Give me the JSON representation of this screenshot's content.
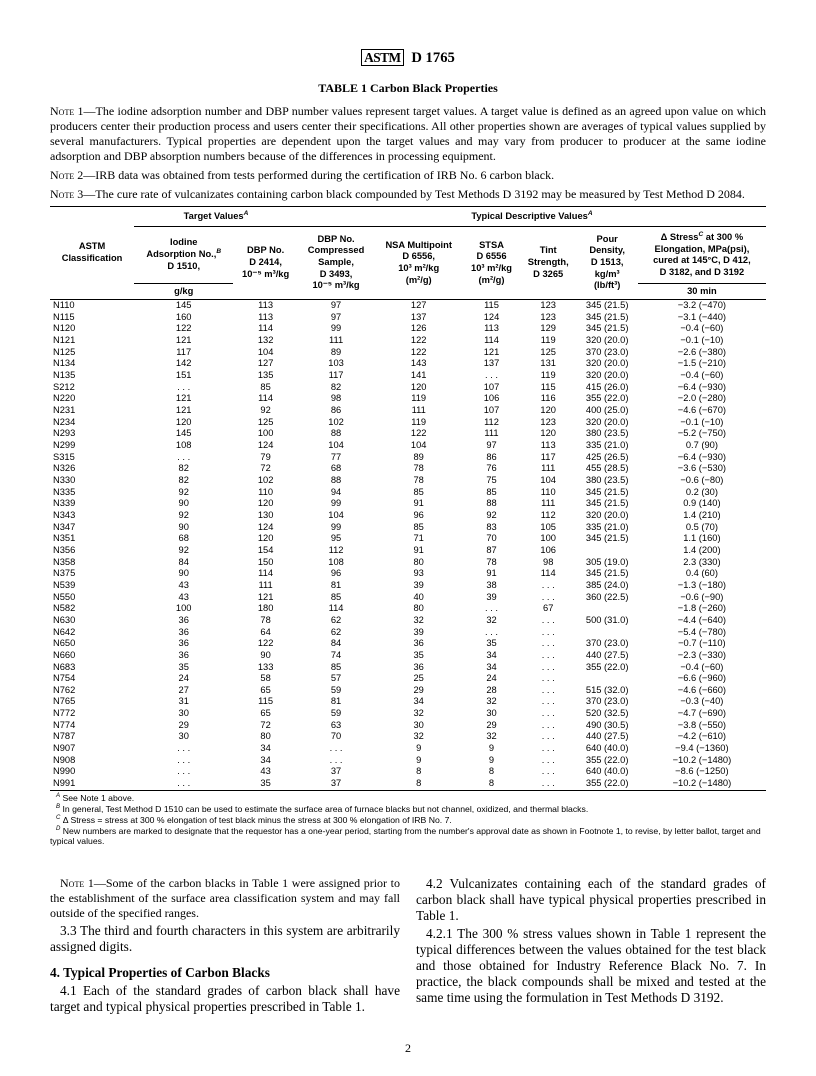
{
  "header": "D 1765",
  "table_title": "TABLE 1  Carbon Black Properties",
  "note1": "NOTE 1—The iodine adsorption number and DBP number values represent target values. A target value is defined as an agreed upon value on which producers center their production process and users center their specifications. All other properties shown are averages of typical values supplied by several manufacturers. Typical properties are dependent upon the target values and may vary from producer to producer at the same iodine adsorption and DBP absorption numbers because of the differences in processing equipment.",
  "note2": "NOTE 2—IRB data was obtained from tests performed during the certification of IRB No. 6 carbon black.",
  "note3": "NOTE 3—The cure rate of vulcanizates containing carbon black compounded by Test Methods D 3192 may be measured by Test Method D 2084.",
  "headers": {
    "astm": "ASTM\nClassification",
    "target": "Target Values",
    "descriptive": "Typical Descriptive Values",
    "iodine": "Iodine\nAdsorption No.,",
    "iodine_sub": "D 1510,\ng/kg",
    "dbp": "DBP No.\nD 2414,\n10⁻⁵ m³/kg",
    "dbp_comp": "DBP No.\nCompressed\nSample,\nD 3493,\n10⁻⁵ m³/kg",
    "nsa": "NSA Multipoint\nD 6556,\n10³ m²/kg\n(m²/g)",
    "stsa": "STSA\nD 6556\n10³ m²/kg\n(m²/g)",
    "tint": "Tint\nStrength,\nD 3265",
    "pour": "Pour\nDensity,\nD 1513,\nkg/m³\n(lb/ft³)",
    "stress": "Δ Stress",
    "stress_sub": " at 300 %\nElongation, MPa(psi),\ncured at 145°C, D 412,\nD 3182, and D 3192",
    "time": "30 min"
  },
  "rows": [
    [
      "N110",
      "145",
      "113",
      "97",
      "127",
      "115",
      "123",
      "345 (21.5)",
      "−3.2 (−470)"
    ],
    [
      "N115",
      "160",
      "113",
      "97",
      "137",
      "124",
      "123",
      "345 (21.5)",
      "−3.1 (−440)"
    ],
    [
      "N120",
      "122",
      "114",
      "99",
      "126",
      "113",
      "129",
      "345 (21.5)",
      "−0.4 (−60)"
    ],
    [
      "N121",
      "121",
      "132",
      "111",
      "122",
      "114",
      "119",
      "320 (20.0)",
      "−0.1 (−10)"
    ],
    [
      "N125",
      "117",
      "104",
      "89",
      "122",
      "121",
      "125",
      "370 (23.0)",
      "−2.6 (−380)"
    ],
    [
      "N134",
      "142",
      "127",
      "103",
      "143",
      "137",
      "131",
      "320 (20.0)",
      "−1.5 (−210)"
    ],
    [
      "N135",
      "151",
      "135",
      "117",
      "141",
      ". . .",
      "119",
      "320 (20.0)",
      "−0.4 (−60)"
    ],
    [
      "S212",
      ". . .",
      "85",
      "82",
      "120",
      "107",
      "115",
      "415 (26.0)",
      "−6.4 (−930)"
    ],
    [
      "N220",
      "121",
      "114",
      "98",
      "119",
      "106",
      "116",
      "355 (22.0)",
      "−2.0 (−280)"
    ],
    [
      "N231",
      "121",
      "92",
      "86",
      "111",
      "107",
      "120",
      "400 (25.0)",
      "−4.6 (−670)"
    ],
    [
      "N234",
      "120",
      "125",
      "102",
      "119",
      "112",
      "123",
      "320 (20.0)",
      "−0.1 (−10)"
    ],
    [
      "N293",
      "145",
      "100",
      "88",
      "122",
      "111",
      "120",
      "380 (23.5)",
      "−5.2 (−750)"
    ],
    [
      "N299",
      "108",
      "124",
      "104",
      "104",
      "97",
      "113",
      "335 (21.0)",
      "0.7 (90)"
    ],
    [
      "S315",
      ". . .",
      "79",
      "77",
      "89",
      "86",
      "117",
      "425 (26.5)",
      "−6.4 (−930)"
    ],
    [
      "N326",
      "82",
      "72",
      "68",
      "78",
      "76",
      "111",
      "455 (28.5)",
      "−3.6 (−530)"
    ],
    [
      "N330",
      "82",
      "102",
      "88",
      "78",
      "75",
      "104",
      "380 (23.5)",
      "−0.6 (−80)"
    ],
    [
      "N335",
      "92",
      "110",
      "94",
      "85",
      "85",
      "110",
      "345 (21.5)",
      "0.2 (30)"
    ],
    [
      "N339",
      "90",
      "120",
      "99",
      "91",
      "88",
      "111",
      "345 (21.5)",
      "0.9 (140)"
    ],
    [
      "N343",
      "92",
      "130",
      "104",
      "96",
      "92",
      "112",
      "320 (20.0)",
      "1.4 (210)"
    ],
    [
      "N347",
      "90",
      "124",
      "99",
      "85",
      "83",
      "105",
      "335 (21.0)",
      "0.5 (70)"
    ],
    [
      "N351",
      "68",
      "120",
      "95",
      "71",
      "70",
      "100",
      "345 (21.5)",
      "1.1 (160)"
    ],
    [
      "N356",
      "92",
      "154",
      "112",
      "91",
      "87",
      "106",
      "",
      "1.4 (200)"
    ],
    [
      "N358",
      "84",
      "150",
      "108",
      "80",
      "78",
      "98",
      "305 (19.0)",
      "2.3 (330)"
    ],
    [
      "N375",
      "90",
      "114",
      "96",
      "93",
      "91",
      "114",
      "345 (21.5)",
      "0.4 (60)"
    ],
    [
      "N539",
      "43",
      "111",
      "81",
      "39",
      "38",
      ". . .",
      "385 (24.0)",
      "−1.3 (−180)"
    ],
    [
      "N550",
      "43",
      "121",
      "85",
      "40",
      "39",
      ". . .",
      "360 (22.5)",
      "−0.6 (−90)"
    ],
    [
      "N582",
      "100",
      "180",
      "114",
      "80",
      ". . .",
      "67",
      "",
      "−1.8 (−260)"
    ],
    [
      "N630",
      "36",
      "78",
      "62",
      "32",
      "32",
      ". . .",
      "500 (31.0)",
      "−4.4 (−640)"
    ],
    [
      "N642",
      "36",
      "64",
      "62",
      "39",
      ". . .",
      ". . .",
      "",
      "−5.4 (−780)"
    ],
    [
      "N650",
      "36",
      "122",
      "84",
      "36",
      "35",
      ". . .",
      "370 (23.0)",
      "−0.7 (−110)"
    ],
    [
      "N660",
      "36",
      "90",
      "74",
      "35",
      "34",
      ". . .",
      "440 (27.5)",
      "−2.3 (−330)"
    ],
    [
      "N683",
      "35",
      "133",
      "85",
      "36",
      "34",
      ". . .",
      "355 (22.0)",
      "−0.4 (−60)"
    ],
    [
      "N754",
      "24",
      "58",
      "57",
      "25",
      "24",
      ". . .",
      "",
      "−6.6 (−960)"
    ],
    [
      "N762",
      "27",
      "65",
      "59",
      "29",
      "28",
      ". . .",
      "515 (32.0)",
      "−4.6 (−660)"
    ],
    [
      "N765",
      "31",
      "115",
      "81",
      "34",
      "32",
      ". . .",
      "370 (23.0)",
      "−0.3 (−40)"
    ],
    [
      "N772",
      "30",
      "65",
      "59",
      "32",
      "30",
      ". . .",
      "520 (32.5)",
      "−4.7 (−690)"
    ],
    [
      "N774",
      "29",
      "72",
      "63",
      "30",
      "29",
      ". . .",
      "490 (30.5)",
      "−3.8 (−550)"
    ],
    [
      "N787",
      "30",
      "80",
      "70",
      "32",
      "32",
      ". . .",
      "440 (27.5)",
      "−4.2 (−610)"
    ],
    [
      "N907",
      ". . .",
      "34",
      ". . .",
      "9",
      "9",
      ". . .",
      "640 (40.0)",
      "−9.4 (−1360)"
    ],
    [
      "N908",
      ". . .",
      "34",
      ". . .",
      "9",
      "9",
      ". . .",
      "355 (22.0)",
      "−10.2 (−1480)"
    ],
    [
      "N990",
      ". . .",
      "43",
      "37",
      "8",
      "8",
      ". . .",
      "640 (40.0)",
      "−8.6 (−1250)"
    ],
    [
      "N991",
      ". . .",
      "35",
      "37",
      "8",
      "8",
      ". . .",
      "355 (22.0)",
      "−10.2 (−1480)"
    ]
  ],
  "fn_a": " See Note 1 above.",
  "fn_b": " In general, Test Method D 1510 can be used to estimate the surface area of furnace blacks but not channel, oxidized, and thermal blacks.",
  "fn_c": " Δ Stress = stress at 300 % elongation of test black minus the stress at 300 % elongation of IRB No. 7.",
  "fn_d": " New numbers are marked to designate that the requestor has a one-year period, starting from the number's approval date as shown in Footnote 1, to revise, by letter ballot, target and typical values.",
  "body": {
    "note1": "NOTE 1—Some of the carbon blacks in Table 1 were assigned prior to the establishment of the surface area classification system and may fall outside of the specified ranges.",
    "p33": "3.3 The third and fourth characters in this system are arbitrarily assigned digits.",
    "h4": "4. Typical Properties of Carbon Blacks",
    "p41": "4.1 Each of the standard grades of carbon black shall have target and typical physical properties prescribed in Table 1.",
    "p42": "4.2 Vulcanizates containing each of the standard grades of carbon black shall have typical physical properties prescribed in Table 1.",
    "p421": "4.2.1 The 300 % stress values shown in Table 1 represent the typical differences between the values obtained for the test black and those obtained for Industry Reference Black No. 7. In practice, the black compounds shall be mixed and tested at the same time using the formulation in Test Methods D 3192."
  },
  "pagenum": "2"
}
